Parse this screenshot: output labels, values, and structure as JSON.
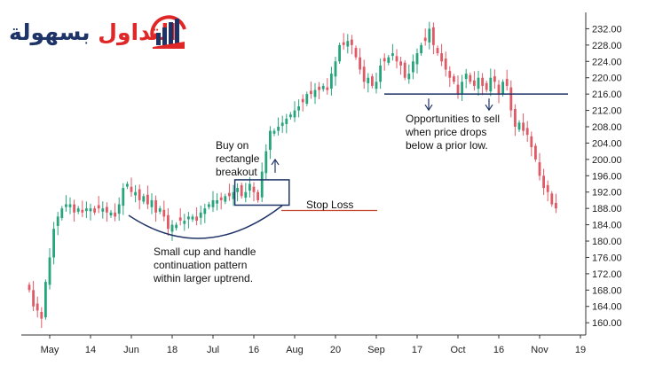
{
  "logo": {
    "word1": "التداول",
    "word2": "بسهولة",
    "icon": "bar-chart-logo-icon",
    "colors": {
      "red": "#e02727",
      "navy": "#1f3466"
    }
  },
  "annotations": {
    "buy": [
      "Buy on",
      "rectangle",
      "breakout"
    ],
    "stop_loss": "Stop Loss",
    "pattern": [
      "Small cup and handle",
      "continuation pattern",
      "within larger uptrend."
    ],
    "sell": [
      "Opportunities to sell",
      "when price drops",
      "below a prior low."
    ]
  },
  "chart_data": {
    "type": "candlestick",
    "title": "",
    "xlabel": "",
    "ylabel": "",
    "ylim": [
      157,
      236
    ],
    "y_ticks": [
      "160.00",
      "164.00",
      "168.00",
      "172.00",
      "176.00",
      "180.00",
      "184.00",
      "188.00",
      "192.00",
      "196.00",
      "200.00",
      "204.00",
      "208.00",
      "212.00",
      "216.00",
      "220.00",
      "224.00",
      "228.00",
      "232.00"
    ],
    "x_ticks": [
      {
        "label": "May",
        "bar": 5
      },
      {
        "label": "14",
        "bar": 15
      },
      {
        "label": "Jun",
        "bar": 25
      },
      {
        "label": "18",
        "bar": 35
      },
      {
        "label": "Jul",
        "bar": 45
      },
      {
        "label": "16",
        "bar": 55
      },
      {
        "label": "Aug",
        "bar": 65
      },
      {
        "label": "20",
        "bar": 75
      },
      {
        "label": "Sep",
        "bar": 85
      },
      {
        "label": "17",
        "bar": 95
      },
      {
        "label": "Oct",
        "bar": 105
      },
      {
        "label": "16",
        "bar": 115
      },
      {
        "label": "Nov",
        "bar": 125
      },
      {
        "label": "19",
        "bar": 135
      }
    ],
    "colors": {
      "up": "#27a47c",
      "down": "#e05a66",
      "annotation": "#1f3466",
      "stop": "#c8462f"
    },
    "closes": [
      168,
      164,
      163,
      161,
      170,
      176,
      183,
      186,
      188,
      189,
      189,
      187,
      188,
      187,
      188,
      188,
      187,
      188,
      188,
      187,
      187,
      186,
      189,
      193,
      194,
      192,
      192,
      190,
      191,
      189,
      190,
      187,
      188,
      186,
      183,
      184,
      184,
      185,
      185,
      186,
      186,
      185,
      187,
      188,
      189,
      190,
      190,
      190,
      191,
      191,
      192,
      193,
      191,
      192,
      194,
      192,
      190,
      197,
      202,
      207,
      207,
      208,
      209,
      210,
      211,
      212,
      213,
      214,
      216,
      216,
      217,
      217,
      218,
      217,
      221,
      224,
      228,
      228,
      229,
      228,
      225,
      222,
      219,
      220,
      218,
      219,
      223,
      224,
      225,
      226,
      224,
      223,
      220,
      221,
      224,
      226,
      228,
      229,
      232,
      228,
      226,
      224,
      222,
      220,
      219,
      216,
      219,
      221,
      219,
      218,
      220,
      218,
      217,
      220,
      219,
      216,
      219,
      218,
      212,
      208,
      209,
      207,
      206,
      203,
      200,
      196,
      193,
      192,
      189,
      188
    ],
    "levels": {
      "stop_loss": 187.5,
      "prior_low": 216,
      "breakout_box": {
        "bar_from": 51,
        "bar_to": 63,
        "low": 188.8,
        "high": 195
      }
    }
  }
}
